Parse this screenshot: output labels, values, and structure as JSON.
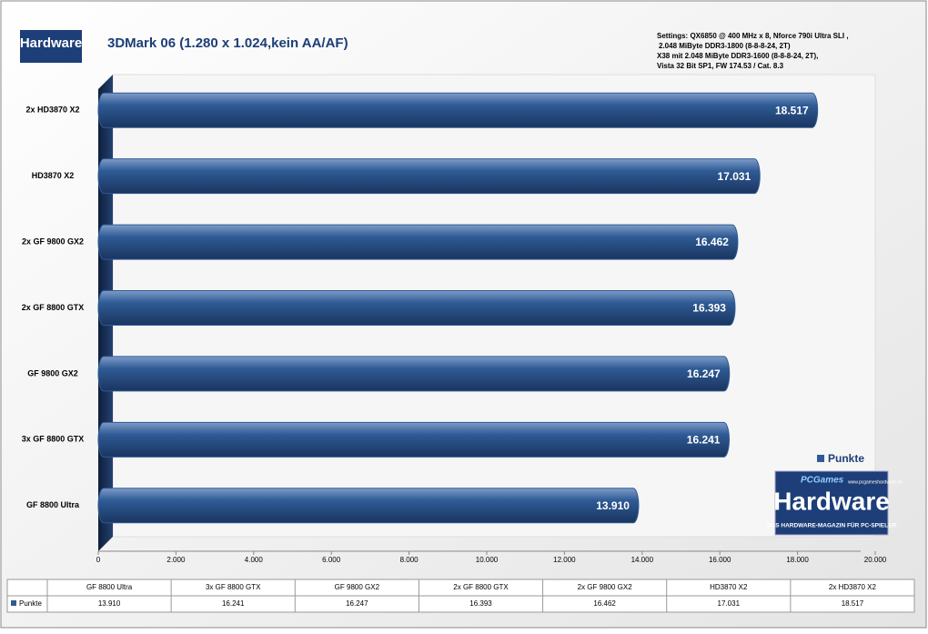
{
  "chart_data": {
    "type": "barh",
    "title": "3DMark 06 (1.280 x 1.024,kein AA/AF)",
    "annotations": [
      "Settings: QX6850 @ 400 MHz x 8, Nforce 790i Ultra SLI ,",
      "2.048 MiByte DDR3-1800 (8-8-8-24, 2T)",
      "X38 mit 2.048 MiByte DDR3-1600 (8-8-8-24, 2T),",
      "Vista 32 Bit SP1, FW 174.53 / Cat. 8.3"
    ],
    "logo": {
      "brand": "PCGames",
      "name": "Hardware",
      "tagline": "DAS HARDWARE-MAGAZIN FÜR PC-SPIELER",
      "url": "www.pcgameshardware.de"
    },
    "categories": [
      "2x HD3870  X2",
      "HD3870  X2",
      "2x GF 9800  GX2",
      "2x GF 8800  GTX",
      "GF 9800  GX2",
      "3x GF 8800  GTX",
      "GF 8800  Ultra"
    ],
    "series": [
      {
        "name": "Punkte",
        "color": "#2f5b95",
        "values": [
          18517,
          17031,
          16462,
          16393,
          16247,
          16241,
          13910
        ],
        "value_labels": [
          "18.517",
          "17.031",
          "16.462",
          "16.393",
          "16.247",
          "16.241",
          "13.910"
        ]
      }
    ],
    "xlim": [
      0,
      20000
    ],
    "xticks": [
      0,
      {
        "value": 2000,
        "label": "2.000"
      },
      {
        "value": 4000,
        "label": "4.000"
      },
      {
        "value": 6000,
        "label": "6.000"
      },
      {
        "value": 8000,
        "label": "8.000"
      },
      {
        "value": 10000,
        "label": "10.000"
      },
      {
        "value": 12000,
        "label": "12.000"
      },
      {
        "value": 14000,
        "label": "14.000"
      },
      {
        "value": 16000,
        "label": "16.000"
      },
      {
        "value": 18000,
        "label": "18.000"
      },
      {
        "value": 20000,
        "label": "20.000"
      }
    ],
    "legend": "right",
    "grid": false
  }
}
